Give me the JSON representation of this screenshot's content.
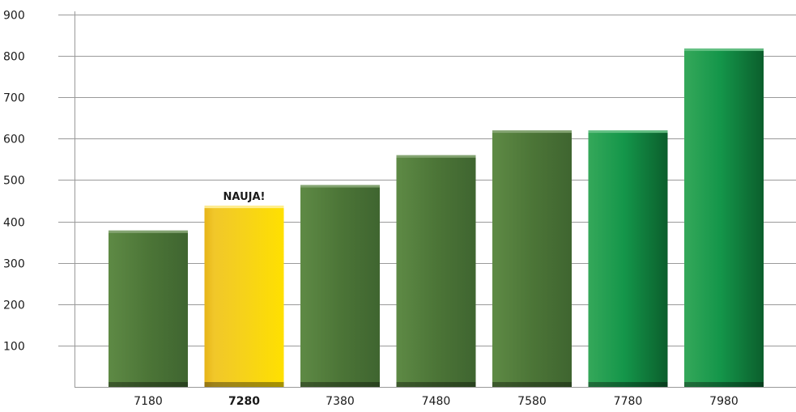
{
  "chart_data": {
    "type": "bar",
    "title": "",
    "xlabel": "",
    "ylabel": "",
    "categories": [
      "7180",
      "7280",
      "7380",
      "7480",
      "7580",
      "7780",
      "7980"
    ],
    "values": [
      378,
      438,
      488,
      560,
      620,
      620,
      818
    ],
    "ylim": [
      0,
      900
    ],
    "y_ticks": [
      100,
      200,
      300,
      400,
      500,
      600,
      700,
      800,
      900
    ],
    "grid": true,
    "legend": "none",
    "highlighted_category": "7280",
    "annotation": {
      "category": "7280",
      "text": "NAUJA!"
    },
    "bar_colors": [
      "#4c7537",
      "#f6d21a",
      "#4c7537",
      "#4c7537",
      "#4c7537",
      "#14964a",
      "#14964a"
    ],
    "bar_color_dark": [
      "#2b4521",
      "#e6b419",
      "#2b4521",
      "#2b4521",
      "#2b4521",
      "#0b5e2c",
      "#0b5e2c"
    ],
    "bar_color_light": [
      "#5e8a45",
      "#f1c72a",
      "#5e8a45",
      "#5e8a45",
      "#5e8a45",
      "#35a85a",
      "#35a85a"
    ]
  }
}
